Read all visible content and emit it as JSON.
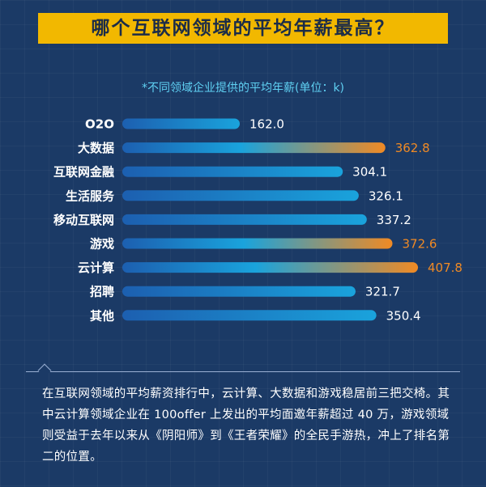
{
  "title": "哪个互联网领域的平均年薪最高？",
  "subtitle": "*不同领域企业提供的平均年薪(单位：k)",
  "colors": {
    "bar_start": "#1c5fb0",
    "bar_mid": "#1aa3dc",
    "bar_end_high": "#f08a24",
    "value_normal": "#ffffff",
    "value_highlight": "#f08a24"
  },
  "chart_data": {
    "type": "bar",
    "orientation": "horizontal",
    "categories": [
      "O2O",
      "大数据",
      "互联网金融",
      "生活服务",
      "移动互联网",
      "游戏",
      "云计算",
      "招聘",
      "其他"
    ],
    "values": [
      162.0,
      362.8,
      304.1,
      326.1,
      337.2,
      372.6,
      407.8,
      321.7,
      350.4
    ],
    "value_labels": [
      "162.0",
      "362.8",
      "304.1",
      "326.1",
      "337.2",
      "372.6",
      "407.8",
      "321.7",
      "350.4"
    ],
    "highlighted": [
      false,
      true,
      false,
      false,
      false,
      true,
      true,
      false,
      false
    ],
    "title": "",
    "xlabel": "",
    "ylabel": "",
    "grid": false,
    "legend": "none"
  },
  "note": "在互联网领域的平均薪资排行中，云计算、大数据和游戏稳居前三把交椅。其中云计算领域企业在 100offer 上发出的平均面邀年薪超过 40 万，游戏领域则受益于去年以来从《阴阳师》到《王者荣耀》的全民手游热，冲上了排名第二的位置。"
}
